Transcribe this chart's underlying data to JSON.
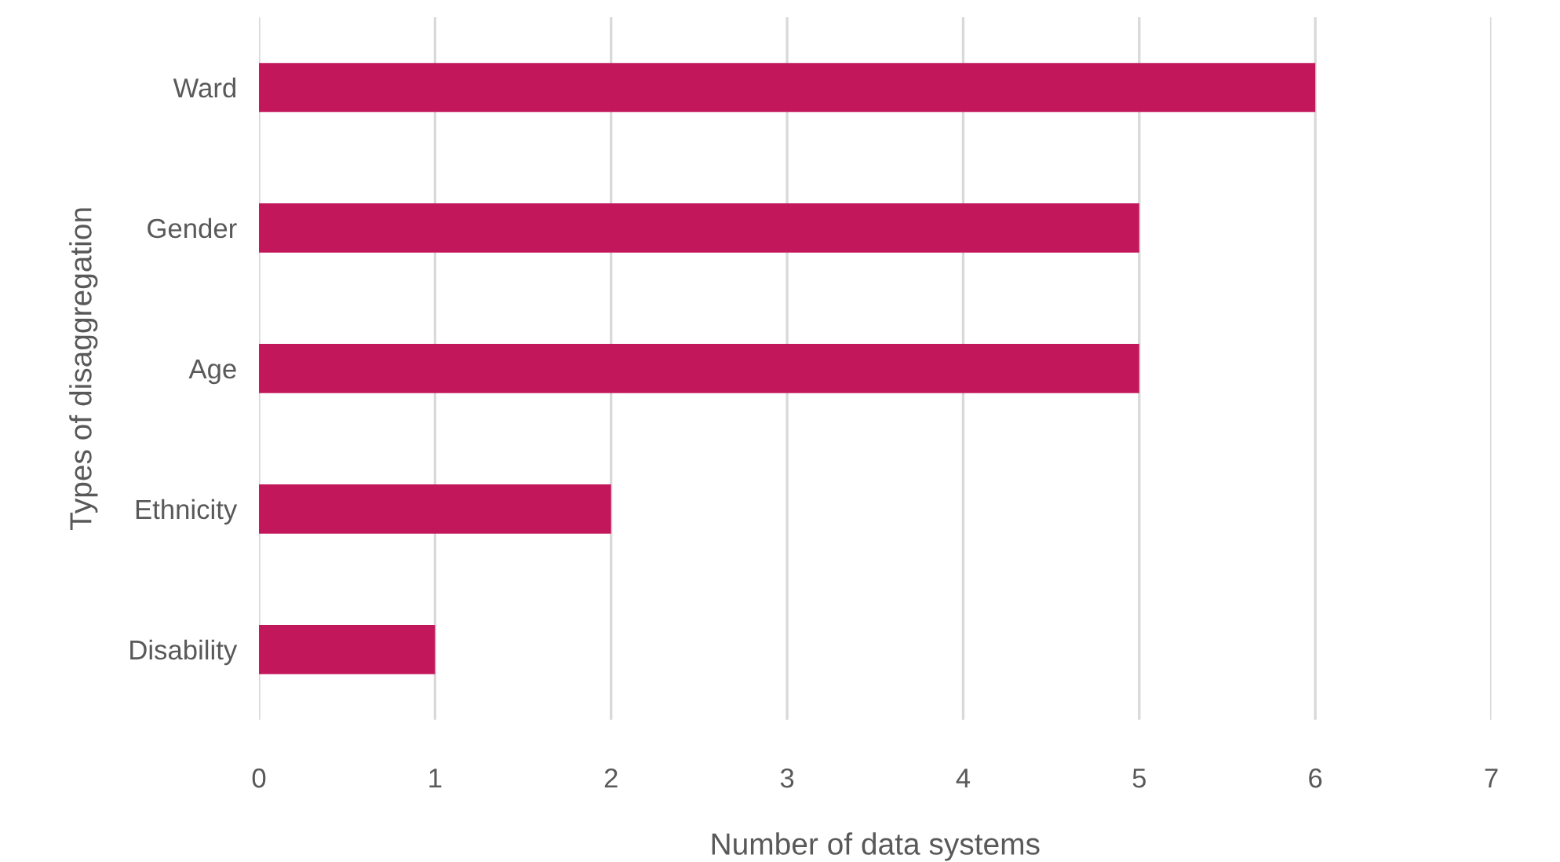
{
  "chart_data": {
    "type": "bar",
    "orientation": "horizontal",
    "xlabel": "Number of data systems",
    "ylabel": "Types of disaggregation",
    "categories": [
      "Ward",
      "Gender",
      "Age",
      "Ethnicity",
      "Disability"
    ],
    "values": [
      6,
      5,
      5,
      2,
      1
    ],
    "color": "#c2185b",
    "xlim": [
      0,
      7
    ],
    "xticks": [
      0,
      1,
      2,
      3,
      4,
      5,
      6,
      7
    ],
    "grid": "x"
  }
}
